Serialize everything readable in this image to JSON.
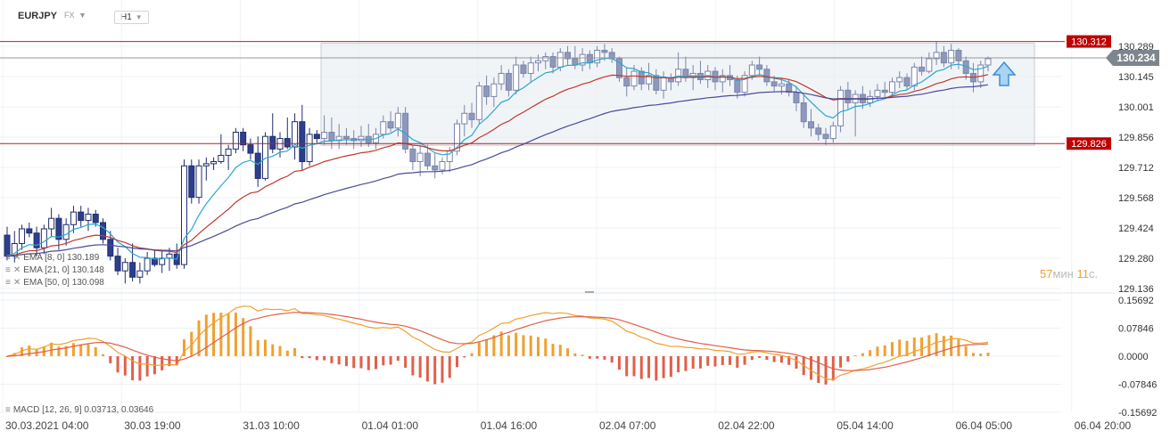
{
  "header": {
    "symbol": "EURJPY",
    "market": "FX",
    "timeframe": "H1"
  },
  "chart_data": {
    "type": "candlestick",
    "y_range": [
      129.136,
      130.289
    ],
    "y_ticks": [
      "130.289",
      "130.145",
      "130.001",
      "129.856",
      "129.712",
      "129.568",
      "129.424",
      "129.280",
      "129.136"
    ],
    "x_ticks": [
      "30.03.2021  04:00",
      "30.03  19:00",
      "31.03  10:00",
      "01.04  01:00",
      "01.04  16:00",
      "02.04  07:00",
      "02.04  22:00",
      "05.04  14:00",
      "06.04  05:00",
      "06.04  20:00"
    ],
    "last_price": {
      "label": "130.234",
      "value": 130.234
    },
    "levels": [
      {
        "label": "130.312",
        "value": 130.312
      },
      {
        "label": "129.826",
        "value": 129.826
      }
    ],
    "timer": {
      "minutes": "57",
      "min_label": "мин",
      "seconds": "11",
      "sec_label": "с."
    },
    "indicators": [
      {
        "label": "EMA  [8,  0]  130.189",
        "color": "#29a7d0"
      },
      {
        "label": "EMA  [21,  0]  130.148",
        "color": "#c0392b"
      },
      {
        "label": "EMA  [50,  0]  130.098",
        "color": "#4a4a9a"
      }
    ],
    "candles_ohlc": [
      [
        129.39,
        129.43,
        129.27,
        129.29
      ],
      [
        129.29,
        129.41,
        129.26,
        129.35
      ],
      [
        129.35,
        129.44,
        129.32,
        129.42
      ],
      [
        129.42,
        129.45,
        129.38,
        129.4
      ],
      [
        129.4,
        129.43,
        129.29,
        129.33
      ],
      [
        129.33,
        129.44,
        129.3,
        129.42
      ],
      [
        129.42,
        129.52,
        129.38,
        129.47
      ],
      [
        129.47,
        129.49,
        129.32,
        129.37
      ],
      [
        129.37,
        129.47,
        129.34,
        129.44
      ],
      [
        129.44,
        129.53,
        129.4,
        129.5
      ],
      [
        129.5,
        129.53,
        129.43,
        129.46
      ],
      [
        129.46,
        129.52,
        129.41,
        129.49
      ],
      [
        129.49,
        129.51,
        129.43,
        129.45
      ],
      [
        129.45,
        129.47,
        129.35,
        129.37
      ],
      [
        129.37,
        129.41,
        129.27,
        129.29
      ],
      [
        129.29,
        129.33,
        129.2,
        129.22
      ],
      [
        129.22,
        129.28,
        129.16,
        129.26
      ],
      [
        129.26,
        129.35,
        129.17,
        129.19
      ],
      [
        129.19,
        129.26,
        129.16,
        129.22
      ],
      [
        129.22,
        129.31,
        129.2,
        129.28
      ],
      [
        129.28,
        129.32,
        129.24,
        129.25
      ],
      [
        129.25,
        129.32,
        129.21,
        129.28
      ],
      [
        129.28,
        129.33,
        129.22,
        129.3
      ],
      [
        129.3,
        129.35,
        129.23,
        129.25
      ],
      [
        129.25,
        129.75,
        129.23,
        129.72
      ],
      [
        129.72,
        129.75,
        129.54,
        129.57
      ],
      [
        129.57,
        129.75,
        129.54,
        129.72
      ],
      [
        129.72,
        129.76,
        129.65,
        129.73
      ],
      [
        129.73,
        129.76,
        129.7,
        129.74
      ],
      [
        129.74,
        129.87,
        129.73,
        129.77
      ],
      [
        129.77,
        129.82,
        129.7,
        129.8
      ],
      [
        129.8,
        129.9,
        129.78,
        129.88
      ],
      [
        129.88,
        129.9,
        129.79,
        129.82
      ],
      [
        129.82,
        129.85,
        129.75,
        129.78
      ],
      [
        129.78,
        129.86,
        129.62,
        129.66
      ],
      [
        129.66,
        129.88,
        129.65,
        129.86
      ],
      [
        129.86,
        129.97,
        129.78,
        129.8
      ],
      [
        129.8,
        129.88,
        129.76,
        129.85
      ],
      [
        129.85,
        129.95,
        129.8,
        129.81
      ],
      [
        129.81,
        129.97,
        129.75,
        129.93
      ],
      [
        129.93,
        130.01,
        129.7,
        129.74
      ],
      [
        129.74,
        129.9,
        129.72,
        129.87
      ],
      [
        129.87,
        129.89,
        129.83,
        129.85
      ],
      [
        129.85,
        129.96,
        129.82,
        129.88
      ],
      [
        129.88,
        129.95,
        129.8,
        129.84
      ],
      [
        129.84,
        129.92,
        129.8,
        129.86
      ],
      [
        129.86,
        129.9,
        129.82,
        129.85
      ],
      [
        129.85,
        129.89,
        129.8,
        129.84
      ],
      [
        129.84,
        129.91,
        129.81,
        129.86
      ],
      [
        129.86,
        129.92,
        129.81,
        129.83
      ],
      [
        129.83,
        129.9,
        129.8,
        129.87
      ],
      [
        129.87,
        129.96,
        129.85,
        129.93
      ],
      [
        129.93,
        129.98,
        129.88,
        129.9
      ],
      [
        129.9,
        130.0,
        129.86,
        129.97
      ],
      [
        129.97,
        130.0,
        129.78,
        129.8
      ],
      [
        129.8,
        129.82,
        129.7,
        129.74
      ],
      [
        129.74,
        129.82,
        129.67,
        129.78
      ],
      [
        129.78,
        129.82,
        129.7,
        129.72
      ],
      [
        129.72,
        129.78,
        129.66,
        129.7
      ],
      [
        129.7,
        129.76,
        129.68,
        129.74
      ],
      [
        129.74,
        129.81,
        129.69,
        129.79
      ],
      [
        129.79,
        129.94,
        129.77,
        129.92
      ],
      [
        129.92,
        130.01,
        129.86,
        129.97
      ],
      [
        129.97,
        130.02,
        129.9,
        129.94
      ],
      [
        129.94,
        130.12,
        129.92,
        130.1
      ],
      [
        130.1,
        130.15,
        130.01,
        130.05
      ],
      [
        130.05,
        130.14,
        130.0,
        130.11
      ],
      [
        130.11,
        130.2,
        130.08,
        130.16
      ],
      [
        130.16,
        130.18,
        130.05,
        130.08
      ],
      [
        130.08,
        130.24,
        130.06,
        130.2
      ],
      [
        130.2,
        130.22,
        130.14,
        130.16
      ],
      [
        130.16,
        130.24,
        130.12,
        130.21
      ],
      [
        130.21,
        130.25,
        130.17,
        130.22
      ],
      [
        130.22,
        130.26,
        130.18,
        130.24
      ],
      [
        130.24,
        130.26,
        130.16,
        130.19
      ],
      [
        130.19,
        130.28,
        130.17,
        130.26
      ],
      [
        130.26,
        130.29,
        130.2,
        130.23
      ],
      [
        130.23,
        130.29,
        130.18,
        130.2
      ],
      [
        130.2,
        130.28,
        130.17,
        130.25
      ],
      [
        130.25,
        130.27,
        130.18,
        130.21
      ],
      [
        130.21,
        130.29,
        130.19,
        130.27
      ],
      [
        130.27,
        130.3,
        130.22,
        130.26
      ],
      [
        130.26,
        130.28,
        130.21,
        130.23
      ],
      [
        130.23,
        130.24,
        130.12,
        130.14
      ],
      [
        130.14,
        130.19,
        130.05,
        130.1
      ],
      [
        130.1,
        130.2,
        130.08,
        130.17
      ],
      [
        130.17,
        130.19,
        130.08,
        130.11
      ],
      [
        130.11,
        130.21,
        130.08,
        130.15
      ],
      [
        130.15,
        130.18,
        130.06,
        130.08
      ],
      [
        130.08,
        130.17,
        130.04,
        130.14
      ],
      [
        130.14,
        130.16,
        130.08,
        130.12
      ],
      [
        130.12,
        130.26,
        130.1,
        130.18
      ],
      [
        130.18,
        130.24,
        130.12,
        130.14
      ],
      [
        130.14,
        130.2,
        130.08,
        130.16
      ],
      [
        130.16,
        130.22,
        130.11,
        130.13
      ],
      [
        130.13,
        130.2,
        130.09,
        130.17
      ],
      [
        130.17,
        130.19,
        130.08,
        130.12
      ],
      [
        130.12,
        130.18,
        130.07,
        130.15
      ],
      [
        130.15,
        130.2,
        130.1,
        130.13
      ],
      [
        130.13,
        130.15,
        130.04,
        130.07
      ],
      [
        130.07,
        130.17,
        130.05,
        130.15
      ],
      [
        130.15,
        130.22,
        130.13,
        130.2
      ],
      [
        130.2,
        130.24,
        130.15,
        130.18
      ],
      [
        130.18,
        130.2,
        130.1,
        130.12
      ],
      [
        130.12,
        130.15,
        130.07,
        130.1
      ],
      [
        130.1,
        130.14,
        130.06,
        130.11
      ],
      [
        130.11,
        130.13,
        130.05,
        130.07
      ],
      [
        130.07,
        130.1,
        129.98,
        130.02
      ],
      [
        130.02,
        130.06,
        129.9,
        129.93
      ],
      [
        129.93,
        129.99,
        129.86,
        129.9
      ],
      [
        129.9,
        129.92,
        129.84,
        129.87
      ],
      [
        129.87,
        129.9,
        129.82,
        129.85
      ],
      [
        129.85,
        129.93,
        129.83,
        129.91
      ],
      [
        129.91,
        130.1,
        129.88,
        130.08
      ],
      [
        130.08,
        130.12,
        129.99,
        130.02
      ],
      [
        130.02,
        130.08,
        129.86,
        130.06
      ],
      [
        130.06,
        130.1,
        129.99,
        130.02
      ],
      [
        130.02,
        130.08,
        130.0,
        130.05
      ],
      [
        130.05,
        130.11,
        130.03,
        130.08
      ],
      [
        130.08,
        130.12,
        130.04,
        130.07
      ],
      [
        130.07,
        130.14,
        130.05,
        130.12
      ],
      [
        130.12,
        130.17,
        130.09,
        130.14
      ],
      [
        130.14,
        130.16,
        130.08,
        130.1
      ],
      [
        130.1,
        130.21,
        130.08,
        130.19
      ],
      [
        130.19,
        130.24,
        130.15,
        130.17
      ],
      [
        130.17,
        130.26,
        130.16,
        130.23
      ],
      [
        130.23,
        130.31,
        130.2,
        130.26
      ],
      [
        130.26,
        130.29,
        130.19,
        130.21
      ],
      [
        130.21,
        130.3,
        130.18,
        130.27
      ],
      [
        130.27,
        130.28,
        130.18,
        130.22
      ],
      [
        130.22,
        130.24,
        130.13,
        130.16
      ],
      [
        130.16,
        130.21,
        130.07,
        130.12
      ],
      [
        130.12,
        130.22,
        130.09,
        130.2
      ],
      [
        130.2,
        130.24,
        130.17,
        130.23
      ]
    ],
    "macd": {
      "label": "MACD  [12,  26,  9]  0.03713,  0.03646",
      "y_ticks": [
        "0.15692",
        "0.07846",
        "0.0000",
        "-0.07846",
        "-0.15692"
      ],
      "y_range": [
        -0.15692,
        0.15692
      ]
    }
  }
}
